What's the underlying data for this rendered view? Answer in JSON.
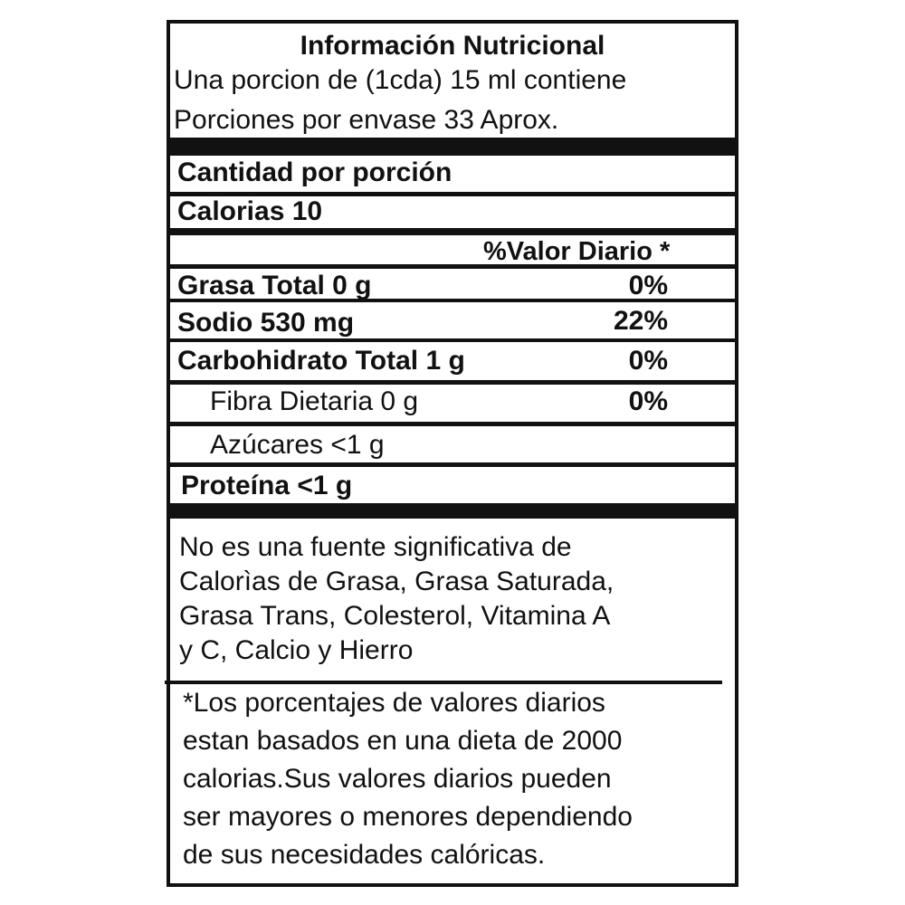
{
  "header": {
    "title": "Información Nutricional",
    "serving_line": "Una porcion de (1cda) 15 ml contiene",
    "servings_line": "Porciones por envase 33 Aprox."
  },
  "amount_per_serving": "Cantidad por porción",
  "calories": "Calorias 10",
  "daily_value_header": "%Valor Diario *",
  "nutrients": [
    {
      "label": "Grasa Total  0 g",
      "dv": "0%"
    },
    {
      "label": "Sodio 530 mg",
      "dv": "22%"
    },
    {
      "label": "Carbohidrato Total 1 g",
      "dv": "0%"
    },
    {
      "label": "Fibra Dietaria 0 g",
      "dv": "0%"
    },
    {
      "label": "Azúcares <1 g",
      "dv": ""
    },
    {
      "label": "Proteína <1 g",
      "dv": ""
    }
  ],
  "footnote_significance": [
    "No es una fuente significativa de",
    "Calorìas de Grasa, Grasa Saturada,",
    "Grasa Trans, Colesterol, Vitamina A",
    "y C, Calcio y Hierro"
  ],
  "footnote_daily_values": [
    "*Los porcentajes de valores diarios",
    "estan basados en una dieta de 2000",
    "calorias.Sus valores diarios pueden",
    "ser mayores o menores dependiendo",
    "de sus necesidades calóricas."
  ]
}
